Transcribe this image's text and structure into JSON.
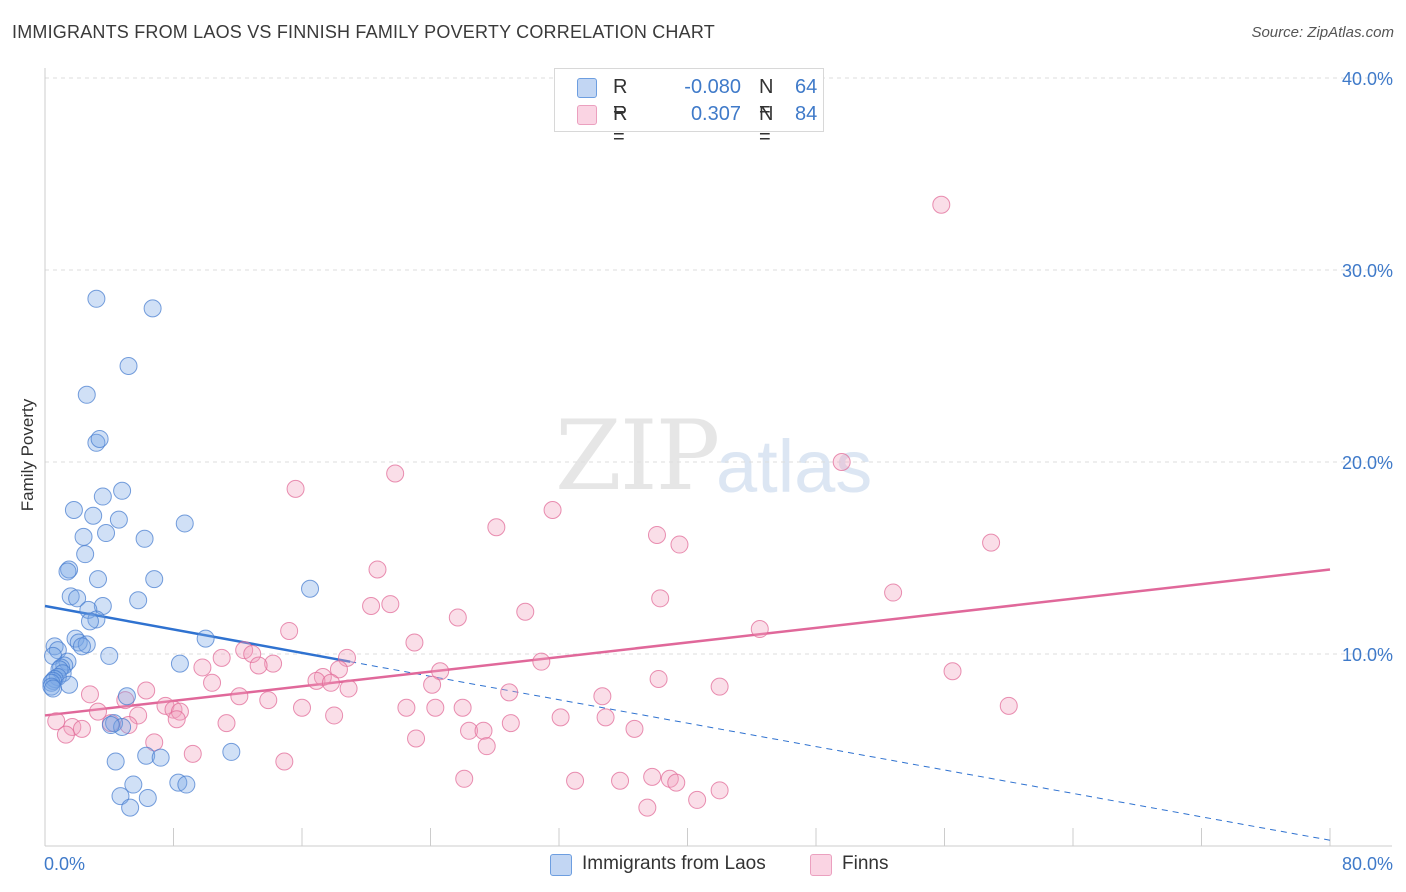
{
  "title": "IMMIGRANTS FROM LAOS VS FINNISH FAMILY POVERTY CORRELATION CHART",
  "source": "Source: ZipAtlas.com",
  "watermark": {
    "zip": "ZIP",
    "atlas": "atlas"
  },
  "colors": {
    "blue": "#4a7fd0",
    "blue_fill": "rgba(120,165,228,0.35)",
    "blue_line": "#2f72d0",
    "pink": "#e26b98",
    "pink_fill": "rgba(240,160,190,0.35)",
    "pink_line": "#e0689a",
    "tick_label": "#3f7ac9",
    "grid": "#dddddd"
  },
  "legend": {
    "rows": [
      {
        "r_label": "R =",
        "r_value": "-0.080",
        "n_label": "N =",
        "n_value": "64"
      },
      {
        "r_label": "R =",
        "r_value": "0.307",
        "n_label": "N =",
        "n_value": "84"
      }
    ]
  },
  "chart_data": {
    "type": "scatter",
    "title": "IMMIGRANTS FROM LAOS VS FINNISH FAMILY POVERTY CORRELATION CHART",
    "xlabel": "",
    "ylabel": "Family Poverty",
    "xlim": [
      0,
      80
    ],
    "ylim": [
      0,
      40
    ],
    "x_tick_labels": [
      "0.0%",
      "80.0%"
    ],
    "y_ticks": [
      10,
      20,
      30,
      40
    ],
    "y_tick_labels": [
      "10.0%",
      "20.0%",
      "30.0%",
      "40.0%"
    ],
    "grid": true,
    "legend_position": "top-center",
    "series": [
      {
        "name": "Immigrants from Laos",
        "color": "#4a7fd0",
        "r": -0.08,
        "n": 64,
        "trend": {
          "x": [
            0,
            19
          ],
          "y": [
            12.5,
            9.6
          ],
          "extended_to": [
            80,
            0.3
          ]
        },
        "points": [
          [
            3.2,
            28.5
          ],
          [
            6.7,
            28.0
          ],
          [
            5.2,
            25.0
          ],
          [
            2.6,
            23.5
          ],
          [
            3.2,
            21.0
          ],
          [
            3.4,
            21.2
          ],
          [
            4.8,
            18.5
          ],
          [
            3.6,
            18.2
          ],
          [
            1.8,
            17.5
          ],
          [
            4.6,
            17.0
          ],
          [
            3.0,
            17.2
          ],
          [
            8.7,
            16.8
          ],
          [
            3.8,
            16.3
          ],
          [
            2.4,
            16.1
          ],
          [
            6.2,
            16.0
          ],
          [
            2.5,
            15.2
          ],
          [
            1.5,
            14.4
          ],
          [
            1.4,
            14.3
          ],
          [
            6.8,
            13.9
          ],
          [
            3.3,
            13.9
          ],
          [
            16.5,
            13.4
          ],
          [
            1.6,
            13.0
          ],
          [
            2.0,
            12.9
          ],
          [
            5.8,
            12.8
          ],
          [
            3.6,
            12.5
          ],
          [
            2.7,
            12.3
          ],
          [
            3.2,
            11.8
          ],
          [
            2.8,
            11.7
          ],
          [
            10.0,
            10.8
          ],
          [
            1.9,
            10.8
          ],
          [
            2.1,
            10.6
          ],
          [
            2.6,
            10.5
          ],
          [
            2.3,
            10.4
          ],
          [
            0.6,
            10.4
          ],
          [
            0.8,
            10.2
          ],
          [
            0.5,
            9.9
          ],
          [
            4.0,
            9.9
          ],
          [
            8.4,
            9.5
          ],
          [
            1.4,
            9.6
          ],
          [
            1.2,
            9.4
          ],
          [
            1.0,
            9.3
          ],
          [
            0.9,
            9.2
          ],
          [
            1.1,
            9.0
          ],
          [
            0.8,
            8.8
          ],
          [
            0.6,
            8.7
          ],
          [
            0.5,
            8.6
          ],
          [
            0.4,
            8.5
          ],
          [
            1.5,
            8.4
          ],
          [
            0.4,
            8.3
          ],
          [
            0.5,
            8.2
          ],
          [
            5.1,
            7.8
          ],
          [
            4.3,
            6.4
          ],
          [
            4.8,
            6.2
          ],
          [
            4.1,
            6.3
          ],
          [
            11.6,
            4.9
          ],
          [
            6.3,
            4.7
          ],
          [
            7.2,
            4.6
          ],
          [
            4.4,
            4.4
          ],
          [
            8.3,
            3.3
          ],
          [
            8.8,
            3.2
          ],
          [
            5.5,
            3.2
          ],
          [
            4.7,
            2.6
          ],
          [
            6.4,
            2.5
          ],
          [
            5.3,
            2.0
          ]
        ]
      },
      {
        "name": "Finns",
        "color": "#e26b98",
        "r": 0.307,
        "n": 84,
        "trend": {
          "x": [
            0,
            80
          ],
          "y": [
            6.8,
            14.4
          ]
        },
        "points": [
          [
            55.8,
            33.4
          ],
          [
            49.6,
            20.0
          ],
          [
            21.8,
            19.4
          ],
          [
            15.6,
            18.6
          ],
          [
            31.6,
            17.5
          ],
          [
            28.1,
            16.6
          ],
          [
            38.1,
            16.2
          ],
          [
            39.5,
            15.7
          ],
          [
            58.9,
            15.8
          ],
          [
            20.7,
            14.4
          ],
          [
            52.8,
            13.2
          ],
          [
            38.3,
            12.9
          ],
          [
            20.3,
            12.5
          ],
          [
            21.5,
            12.6
          ],
          [
            29.9,
            12.2
          ],
          [
            25.7,
            11.9
          ],
          [
            44.5,
            11.3
          ],
          [
            15.2,
            11.2
          ],
          [
            23.0,
            10.6
          ],
          [
            12.4,
            10.2
          ],
          [
            12.9,
            10.0
          ],
          [
            18.8,
            9.8
          ],
          [
            11.0,
            9.8
          ],
          [
            30.9,
            9.6
          ],
          [
            14.2,
            9.5
          ],
          [
            13.3,
            9.4
          ],
          [
            9.8,
            9.3
          ],
          [
            18.3,
            9.2
          ],
          [
            24.6,
            9.1
          ],
          [
            56.5,
            9.1
          ],
          [
            17.3,
            8.8
          ],
          [
            16.9,
            8.6
          ],
          [
            38.2,
            8.7
          ],
          [
            17.8,
            8.5
          ],
          [
            10.4,
            8.5
          ],
          [
            24.1,
            8.4
          ],
          [
            42.0,
            8.3
          ],
          [
            18.9,
            8.2
          ],
          [
            6.3,
            8.1
          ],
          [
            2.8,
            7.9
          ],
          [
            28.9,
            8.0
          ],
          [
            12.1,
            7.8
          ],
          [
            34.7,
            7.8
          ],
          [
            13.9,
            7.6
          ],
          [
            5.0,
            7.6
          ],
          [
            7.5,
            7.3
          ],
          [
            16.0,
            7.2
          ],
          [
            22.5,
            7.2
          ],
          [
            24.3,
            7.2
          ],
          [
            26.0,
            7.2
          ],
          [
            60.0,
            7.3
          ],
          [
            8.0,
            7.1
          ],
          [
            3.3,
            7.0
          ],
          [
            8.4,
            7.0
          ],
          [
            18.0,
            6.8
          ],
          [
            5.8,
            6.8
          ],
          [
            8.2,
            6.6
          ],
          [
            32.1,
            6.7
          ],
          [
            34.9,
            6.7
          ],
          [
            0.7,
            6.5
          ],
          [
            11.3,
            6.4
          ],
          [
            4.1,
            6.4
          ],
          [
            29.0,
            6.4
          ],
          [
            5.2,
            6.3
          ],
          [
            1.7,
            6.2
          ],
          [
            2.3,
            6.1
          ],
          [
            36.7,
            6.1
          ],
          [
            26.4,
            6.0
          ],
          [
            27.3,
            6.0
          ],
          [
            1.3,
            5.8
          ],
          [
            6.8,
            5.4
          ],
          [
            23.1,
            5.6
          ],
          [
            27.5,
            5.2
          ],
          [
            9.2,
            4.8
          ],
          [
            14.9,
            4.4
          ],
          [
            26.1,
            3.5
          ],
          [
            33.0,
            3.4
          ],
          [
            35.8,
            3.4
          ],
          [
            37.8,
            3.6
          ],
          [
            40.6,
            2.4
          ],
          [
            42.0,
            2.9
          ],
          [
            38.9,
            3.5
          ],
          [
            39.3,
            3.3
          ],
          [
            37.5,
            2.0
          ]
        ]
      }
    ]
  }
}
